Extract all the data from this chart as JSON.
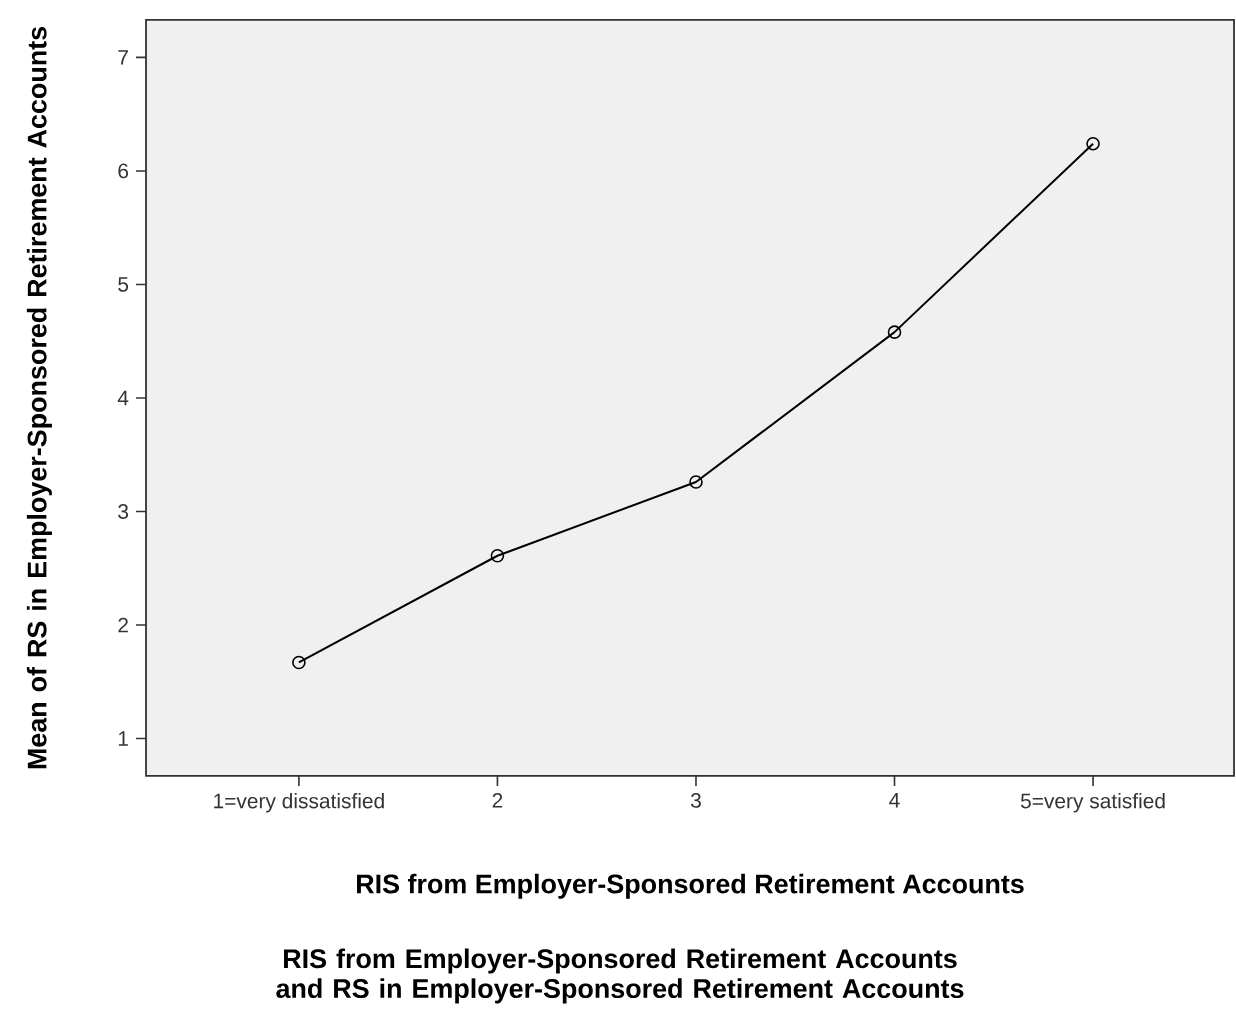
{
  "chart_data": {
    "type": "line",
    "title": "RIS from Employer-Sponsored Retirement Accounts and RS in Employer-Sponsored Retirement Accounts",
    "xlabel": "RIS from Employer-Sponsored Retirement Accounts",
    "ylabel": "Mean of RS in Employer-Sponsored Retirement Accounts",
    "categories": [
      "1=very dissatisfied",
      "2",
      "3",
      "4",
      "5=very satisfied"
    ],
    "values": [
      1.67,
      2.61,
      3.26,
      4.58,
      6.24
    ],
    "color": "#000000",
    "ylim": [
      0.67,
      7.33
    ],
    "yticks": [
      1,
      2,
      3,
      4,
      5,
      6,
      7
    ],
    "marker": "circle",
    "line_style": "solid",
    "grid": false
  }
}
